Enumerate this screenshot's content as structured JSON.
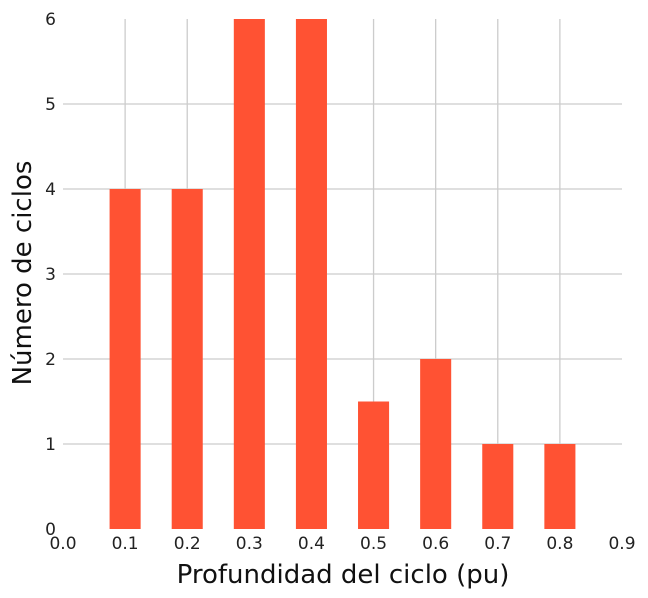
{
  "chart_data": {
    "type": "bar",
    "x": [
      0.1,
      0.2,
      0.3,
      0.4,
      0.5,
      0.6,
      0.7,
      0.8
    ],
    "values": [
      4,
      4,
      6,
      6,
      1.5,
      2,
      1,
      1
    ],
    "bar_width": 0.05,
    "xlabel": "Profundidad del ciclo (pu)",
    "ylabel": "Número de ciclos",
    "xlim": [
      0.0,
      0.9
    ],
    "ylim": [
      0,
      6
    ],
    "xticks": [
      "0.0",
      "0.1",
      "0.2",
      "0.3",
      "0.4",
      "0.5",
      "0.6",
      "0.7",
      "0.8",
      "0.9"
    ],
    "yticks": [
      "0",
      "1",
      "2",
      "3",
      "4",
      "5",
      "6"
    ],
    "grid": true,
    "bar_color": "#ff5233",
    "grid_color": "#cccccc"
  }
}
